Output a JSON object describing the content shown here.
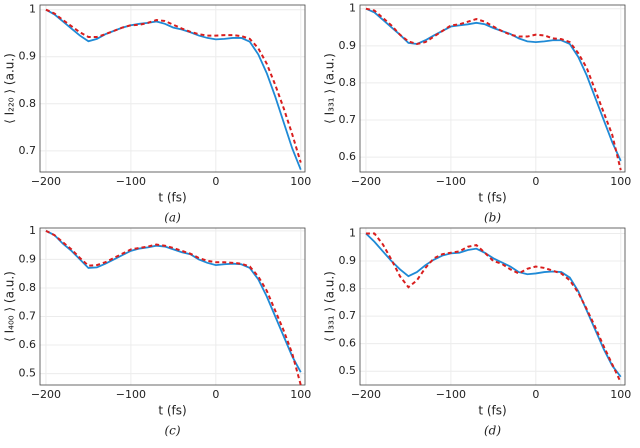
{
  "chart_data": [
    {
      "type": "line",
      "xlabel": "t (fs)",
      "ylabel": "⟨ I₂₂₀ ⟩ (a.u.)",
      "caption": "(a)",
      "x": [
        -200,
        -190,
        -180,
        -170,
        -160,
        -150,
        -140,
        -130,
        -120,
        -110,
        -100,
        -90,
        -80,
        -70,
        -60,
        -50,
        -40,
        -30,
        -20,
        -10,
        0,
        10,
        20,
        30,
        40,
        50,
        60,
        70,
        80,
        90,
        100
      ],
      "series": [
        {
          "color": "#1f8ad6",
          "dash": false,
          "values": [
            1.0,
            0.99,
            0.975,
            0.96,
            0.945,
            0.933,
            0.938,
            0.948,
            0.955,
            0.962,
            0.967,
            0.97,
            0.972,
            0.975,
            0.97,
            0.962,
            0.958,
            0.952,
            0.945,
            0.94,
            0.937,
            0.938,
            0.94,
            0.94,
            0.932,
            0.905,
            0.865,
            0.815,
            0.76,
            0.705,
            0.66
          ]
        },
        {
          "color": "#d91e1e",
          "dash": true,
          "values": [
            1.0,
            0.992,
            0.978,
            0.965,
            0.952,
            0.942,
            0.942,
            0.948,
            0.955,
            0.962,
            0.967,
            0.968,
            0.972,
            0.978,
            0.976,
            0.968,
            0.96,
            0.953,
            0.948,
            0.945,
            0.945,
            0.946,
            0.946,
            0.944,
            0.938,
            0.918,
            0.885,
            0.84,
            0.79,
            0.735,
            0.675
          ]
        }
      ],
      "xlim": [
        -207,
        105
      ],
      "xticks": [
        {
          "value": -200,
          "label": "−200"
        },
        {
          "value": -100,
          "label": "−100"
        },
        0,
        100
      ],
      "ylim": [
        0.655,
        1.01
      ],
      "yticks": [
        0.7,
        0.8,
        0.9,
        1.0
      ],
      "grid": true
    },
    {
      "type": "line",
      "xlabel": "t (fs)",
      "ylabel": "⟨ I₃₃₁ ⟩ (a.u.)",
      "caption": "(b)",
      "x": [
        -200,
        -190,
        -180,
        -170,
        -160,
        -150,
        -140,
        -130,
        -120,
        -110,
        -100,
        -90,
        -80,
        -70,
        -60,
        -50,
        -40,
        -30,
        -20,
        -10,
        0,
        10,
        20,
        30,
        40,
        50,
        60,
        70,
        80,
        90,
        100
      ],
      "series": [
        {
          "color": "#1f8ad6",
          "dash": false,
          "values": [
            1.0,
            0.99,
            0.97,
            0.95,
            0.93,
            0.908,
            0.905,
            0.915,
            0.928,
            0.94,
            0.952,
            0.955,
            0.958,
            0.962,
            0.958,
            0.948,
            0.94,
            0.932,
            0.92,
            0.912,
            0.91,
            0.912,
            0.915,
            0.915,
            0.905,
            0.87,
            0.82,
            0.76,
            0.7,
            0.64,
            0.59
          ]
        },
        {
          "color": "#d91e1e",
          "dash": true,
          "values": [
            1.0,
            0.995,
            0.975,
            0.955,
            0.93,
            0.912,
            0.905,
            0.91,
            0.925,
            0.94,
            0.955,
            0.958,
            0.965,
            0.972,
            0.965,
            0.952,
            0.94,
            0.93,
            0.925,
            0.925,
            0.93,
            0.928,
            0.92,
            0.918,
            0.91,
            0.88,
            0.84,
            0.78,
            0.72,
            0.66,
            0.565
          ]
        }
      ],
      "xlim": [
        -207,
        105
      ],
      "xticks": [
        {
          "value": -200,
          "label": "−200"
        },
        {
          "value": -100,
          "label": "−100"
        },
        0,
        100
      ],
      "ylim": [
        0.56,
        1.01
      ],
      "yticks": [
        0.6,
        0.7,
        0.8,
        0.9,
        1.0
      ],
      "grid": true
    },
    {
      "type": "line",
      "xlabel": "t (fs)",
      "ylabel": "⟨ I₄₀₀ ⟩ (a.u.)",
      "caption": "(c)",
      "x": [
        -200,
        -190,
        -180,
        -170,
        -160,
        -150,
        -140,
        -130,
        -120,
        -110,
        -100,
        -90,
        -80,
        -70,
        -60,
        -50,
        -40,
        -30,
        -20,
        -10,
        0,
        10,
        20,
        30,
        40,
        50,
        60,
        70,
        80,
        90,
        100
      ],
      "series": [
        {
          "color": "#1f8ad6",
          "dash": false,
          "values": [
            1.0,
            0.985,
            0.955,
            0.93,
            0.9,
            0.87,
            0.872,
            0.885,
            0.9,
            0.915,
            0.93,
            0.938,
            0.942,
            0.948,
            0.945,
            0.935,
            0.925,
            0.918,
            0.9,
            0.888,
            0.88,
            0.883,
            0.885,
            0.883,
            0.87,
            0.83,
            0.77,
            0.7,
            0.63,
            0.56,
            0.505
          ]
        },
        {
          "color": "#d91e1e",
          "dash": true,
          "values": [
            1.0,
            0.985,
            0.96,
            0.935,
            0.905,
            0.878,
            0.88,
            0.89,
            0.905,
            0.92,
            0.935,
            0.94,
            0.945,
            0.952,
            0.948,
            0.94,
            0.93,
            0.92,
            0.905,
            0.895,
            0.89,
            0.89,
            0.888,
            0.885,
            0.875,
            0.84,
            0.79,
            0.72,
            0.65,
            0.57,
            0.46
          ]
        }
      ],
      "xlim": [
        -207,
        105
      ],
      "xticks": [
        {
          "value": -200,
          "label": "−200"
        },
        {
          "value": -100,
          "label": "−100"
        },
        0,
        100
      ],
      "ylim": [
        0.46,
        1.01
      ],
      "yticks": [
        0.5,
        0.6,
        0.7,
        0.8,
        0.9,
        1.0
      ],
      "grid": true
    },
    {
      "type": "line",
      "xlabel": "t (fs)",
      "ylabel": "⟨ I₃₃₁ ⟩ (a.u.)",
      "caption": "(d)",
      "x": [
        -200,
        -190,
        -180,
        -170,
        -160,
        -150,
        -140,
        -130,
        -120,
        -110,
        -100,
        -90,
        -80,
        -70,
        -60,
        -50,
        -40,
        -30,
        -20,
        -10,
        0,
        10,
        20,
        30,
        40,
        50,
        60,
        70,
        80,
        90,
        100
      ],
      "series": [
        {
          "color": "#1f8ad6",
          "dash": false,
          "values": [
            1.0,
            0.97,
            0.935,
            0.9,
            0.87,
            0.845,
            0.86,
            0.885,
            0.905,
            0.92,
            0.928,
            0.93,
            0.94,
            0.945,
            0.93,
            0.91,
            0.895,
            0.88,
            0.86,
            0.852,
            0.855,
            0.86,
            0.862,
            0.86,
            0.84,
            0.79,
            0.72,
            0.65,
            0.58,
            0.52,
            0.48
          ]
        },
        {
          "color": "#d91e1e",
          "dash": true,
          "values": [
            1.0,
            1.0,
            0.96,
            0.905,
            0.845,
            0.805,
            0.83,
            0.875,
            0.91,
            0.925,
            0.93,
            0.935,
            0.952,
            0.958,
            0.93,
            0.9,
            0.89,
            0.87,
            0.855,
            0.872,
            0.88,
            0.875,
            0.865,
            0.855,
            0.83,
            0.785,
            0.725,
            0.66,
            0.59,
            0.525,
            0.46
          ]
        }
      ],
      "xlim": [
        -207,
        105
      ],
      "xticks": [
        {
          "value": -200,
          "label": "−200"
        },
        {
          "value": -100,
          "label": "−100"
        },
        0,
        100
      ],
      "ylim": [
        0.45,
        1.02
      ],
      "yticks": [
        0.5,
        0.6,
        0.7,
        0.8,
        0.9,
        1.0
      ],
      "grid": true
    }
  ]
}
